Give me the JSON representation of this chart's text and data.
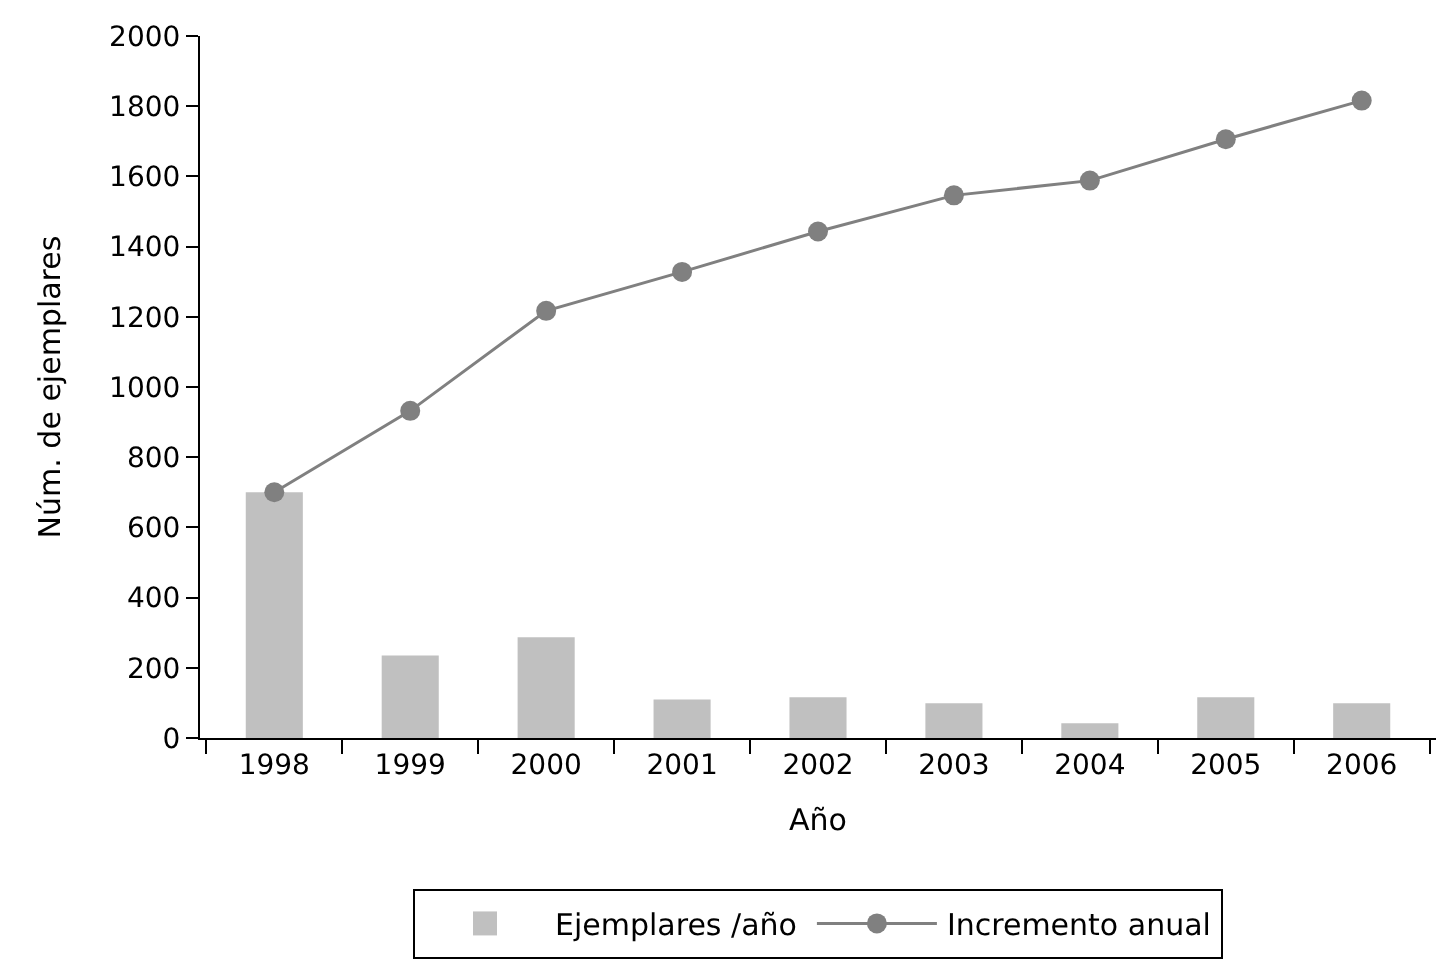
{
  "chart_data": {
    "type": "bar",
    "xlabel": "Año",
    "ylabel": "Núm. de ejemplares",
    "categories": [
      "1998",
      "1999",
      "2000",
      "2001",
      "2002",
      "2003",
      "2004",
      "2005",
      "2006"
    ],
    "ylim": [
      0,
      2000
    ],
    "yticks": [
      0,
      200,
      400,
      600,
      800,
      1000,
      1200,
      1400,
      1600,
      1800,
      2000
    ],
    "legend": "bottom",
    "series": [
      {
        "name": "Ejemplares /año",
        "color": "#c0c0c0",
        "values": [
          700,
          235,
          287,
          110,
          116,
          99,
          42,
          116,
          99
        ]
      },
      {
        "name": "Incremento anual",
        "type": "line",
        "color": "#808080",
        "marker": "circle",
        "line_style": "solid",
        "values": [
          700,
          932,
          1217,
          1328,
          1443,
          1546,
          1588,
          1706,
          1816
        ]
      }
    ]
  }
}
